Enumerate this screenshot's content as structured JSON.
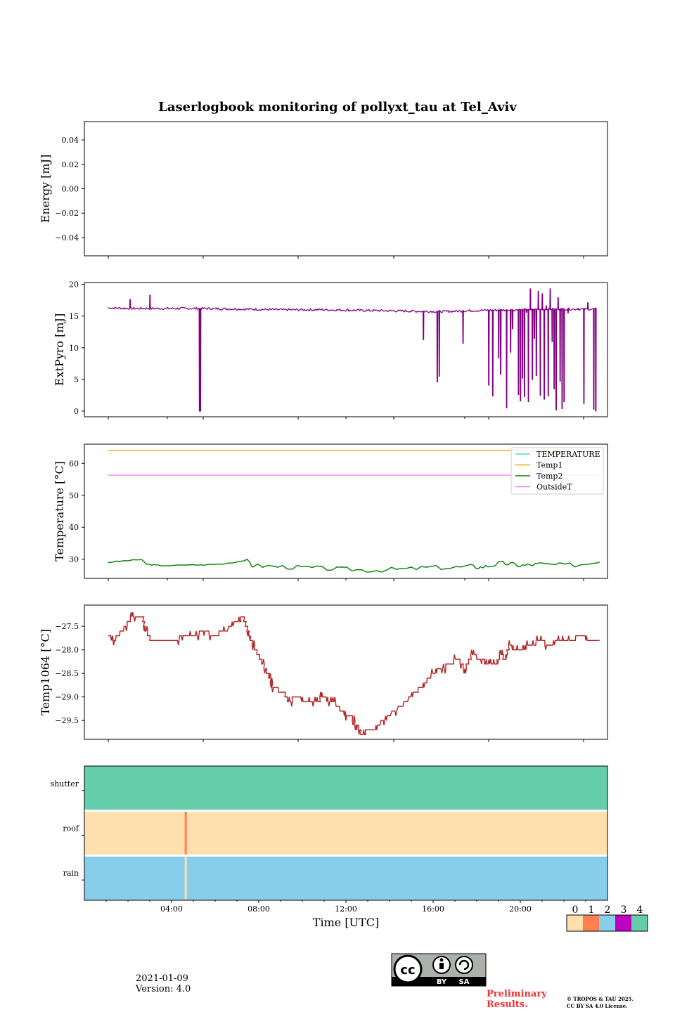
{
  "title": "Laserlogbook monitoring of pollyxt_tau at Tel_Aviv",
  "date_text": "2021-01-09",
  "version_text": "Version: 4.0",
  "preliminary_line1": "Preliminary",
  "preliminary_line2": "Results.",
  "copyright_line1": "© TROPOS & TAU 2025.",
  "copyright_line2": "CC BY SA 4.0 License.",
  "license_badge": {
    "by": "BY",
    "sa": "SA",
    "cc": "cc"
  },
  "colors": {
    "energy": "#800080",
    "extpyro": "#800080",
    "temp1064": "#b22222",
    "TEMPERATURE": "#40e0d0",
    "Temp1": "#ffa500",
    "Temp2": "#008000",
    "OutsideT": "#ee82ee",
    "status": [
      "#fde0ad",
      "#ff7f50",
      "#87ceeb",
      "#c000c0",
      "#66cdaa"
    ]
  },
  "chart_data": [
    {
      "type": "line",
      "ylabel": "Energy [mJ]",
      "yticks": [
        "0.04",
        "0.02",
        "0.00",
        "−0.02",
        "−0.04"
      ],
      "ytick_values": [
        0.04,
        0.02,
        0.0,
        -0.02,
        -0.04
      ],
      "ylim": [
        -0.055,
        0.055
      ],
      "xlim": [
        0,
        26.4
      ],
      "series": []
    },
    {
      "type": "line",
      "ylabel": "ExtPyro [mJ]",
      "yticks": [
        "20",
        "15",
        "10",
        "5",
        "0"
      ],
      "ytick_values": [
        20,
        15,
        10,
        5,
        0
      ],
      "ylim": [
        -0.9,
        20.3
      ],
      "xlim": [
        0,
        26.4
      ],
      "baseline": [
        [
          1.2,
          16.3
        ],
        [
          2.5,
          16.2
        ],
        [
          4.0,
          16.2
        ],
        [
          6.0,
          16.2
        ],
        [
          8.0,
          16.1
        ],
        [
          10.0,
          16.0
        ],
        [
          12.0,
          16.0
        ],
        [
          14.0,
          15.9
        ],
        [
          16.0,
          15.8
        ],
        [
          18.0,
          15.7
        ],
        [
          20.0,
          15.9
        ],
        [
          22.0,
          16.0
        ],
        [
          24.0,
          16.1
        ]
      ],
      "spikes": [
        [
          2.3,
          17.6
        ],
        [
          3.3,
          18.3
        ],
        [
          5.8,
          0.0
        ],
        [
          5.85,
          0.0
        ],
        [
          17.1,
          11.3
        ],
        [
          17.8,
          4.6
        ],
        [
          17.9,
          5.5
        ],
        [
          19.1,
          10.7
        ],
        [
          20.4,
          4.1
        ],
        [
          20.6,
          2.4
        ],
        [
          20.9,
          8.4
        ],
        [
          21.0,
          5.8
        ],
        [
          21.3,
          0.5
        ],
        [
          21.5,
          9.3
        ],
        [
          21.6,
          13.0
        ],
        [
          21.9,
          2.6
        ],
        [
          22.0,
          1.6
        ],
        [
          22.1,
          5.2
        ],
        [
          22.2,
          2.3
        ],
        [
          22.3,
          15.6
        ],
        [
          22.4,
          1.5
        ],
        [
          22.5,
          19.3
        ],
        [
          22.6,
          5.0
        ],
        [
          22.7,
          11.5
        ],
        [
          22.8,
          5.6
        ],
        [
          22.9,
          18.9
        ],
        [
          23.0,
          2.5
        ],
        [
          23.1,
          18.5
        ],
        [
          23.2,
          1.9
        ],
        [
          23.3,
          16.6
        ],
        [
          23.4,
          2.4
        ],
        [
          23.5,
          19.3
        ],
        [
          23.6,
          11.0
        ],
        [
          23.7,
          3.5
        ],
        [
          23.8,
          0.2
        ],
        [
          23.9,
          17.9
        ],
        [
          24.0,
          4.7
        ],
        [
          24.1,
          0.4
        ],
        [
          24.2,
          1.5
        ],
        [
          24.4,
          15.5
        ],
        [
          24.9,
          16.2
        ],
        [
          25.2,
          1.2
        ],
        [
          25.4,
          17.1
        ],
        [
          25.7,
          0.3
        ],
        [
          25.8,
          0.0
        ]
      ]
    },
    {
      "type": "line",
      "ylabel": "Temperature [°C]",
      "yticks": [
        "60",
        "50",
        "40",
        "30"
      ],
      "ytick_values": [
        60,
        50,
        40,
        30
      ],
      "ylim": [
        24,
        66
      ],
      "xlim": [
        0,
        26.4
      ],
      "series": [
        {
          "name": "TEMPERATURE",
          "x": [],
          "y": []
        },
        {
          "name": "Temp1",
          "x": [
            1.2,
            24.0
          ],
          "y": [
            64.0,
            64.0
          ]
        },
        {
          "name": "Temp2",
          "x": [
            1.2,
            2.0,
            2.9,
            3.1,
            3.5,
            4.0,
            5.5,
            6.0,
            7.0,
            8.0,
            8.2,
            8.5,
            9.5,
            10.5,
            11.5,
            12.5,
            13.5,
            14.5,
            15.5,
            16.5,
            17.5,
            18.5,
            19.5,
            20.0,
            20.5,
            21.0,
            21.5,
            22.0,
            22.5,
            23.0,
            24.0,
            25.0,
            25.5,
            26.0
          ],
          "y": [
            29.0,
            29.5,
            29.9,
            28.5,
            28.2,
            28.0,
            28.2,
            28.2,
            28.5,
            29.5,
            29.9,
            28.0,
            27.8,
            27.5,
            27.3,
            27.0,
            26.8,
            26.5,
            26.8,
            27.0,
            27.5,
            27.3,
            27.8,
            27.5,
            28.0,
            28.8,
            28.5,
            28.0,
            28.2,
            28.5,
            28.2,
            28.2,
            28.6,
            29.1
          ]
        },
        {
          "name": "OutsideT",
          "x": [
            1.2,
            26.0
          ],
          "y": [
            56.3,
            56.3
          ]
        }
      ],
      "legend": [
        "TEMPERATURE",
        "Temp1",
        "Temp2",
        "OutsideT"
      ],
      "legend_position": "top-right"
    },
    {
      "type": "line",
      "ylabel": "Temp1064 [°C]",
      "yticks": [
        "−27.5",
        "−28.0",
        "−28.5",
        "−29.0",
        "−29.5"
      ],
      "ytick_values": [
        -27.5,
        -28.0,
        -28.5,
        -29.0,
        -29.5
      ],
      "ylim": [
        -29.9,
        -27.05
      ],
      "xlim": [
        0,
        26.4
      ],
      "x": [
        1.2,
        1.5,
        2.0,
        2.4,
        2.9,
        3.0,
        3.3,
        4.0,
        4.5,
        5.0,
        5.5,
        6.0,
        6.5,
        7.0,
        7.7,
        8.0,
        8.2,
        8.4,
        8.7,
        9.0,
        9.3,
        9.5,
        10.0,
        10.3,
        10.6,
        11.2,
        11.7,
        12.0,
        12.5,
        13.0,
        13.2,
        13.4,
        13.7,
        14.0,
        14.3,
        14.6,
        15.2,
        16.0,
        16.6,
        17.0,
        17.5,
        18.0,
        18.4,
        18.8,
        19.2,
        19.5,
        20.0,
        20.3,
        20.7,
        21.0,
        21.2,
        21.4,
        21.8,
        22.0,
        22.5,
        23.0,
        23.4,
        24.0,
        24.5,
        25.0,
        25.5,
        26.0
      ],
      "y": [
        -27.7,
        -27.8,
        -27.5,
        -27.3,
        -27.3,
        -27.5,
        -27.8,
        -27.8,
        -27.8,
        -27.7,
        -27.7,
        -27.6,
        -27.7,
        -27.6,
        -27.4,
        -27.3,
        -27.6,
        -27.8,
        -28.1,
        -28.3,
        -28.6,
        -28.8,
        -28.9,
        -29.1,
        -29.0,
        -29.1,
        -29.1,
        -29.0,
        -29.1,
        -29.3,
        -29.4,
        -29.4,
        -29.6,
        -29.8,
        -29.7,
        -29.7,
        -29.4,
        -29.2,
        -28.9,
        -28.8,
        -28.5,
        -28.4,
        -28.3,
        -28.2,
        -28.4,
        -28.1,
        -28.2,
        -28.3,
        -28.3,
        -28.1,
        -28.2,
        -27.9,
        -28.0,
        -28.0,
        -27.9,
        -27.8,
        -27.9,
        -27.8,
        -27.8,
        -27.7,
        -27.8,
        -27.8
      ]
    },
    {
      "type": "heatmap",
      "rows": [
        "shutter",
        "roof",
        "rain"
      ],
      "xlabel": "Time [UTC]",
      "xticks": [
        "04:00",
        "08:00",
        "12:00",
        "16:00",
        "20:00"
      ],
      "xtick_values": [
        4,
        8,
        12,
        16,
        20
      ],
      "xlim": [
        0,
        24
      ],
      "row_values": [
        4,
        0,
        2
      ],
      "events": [
        {
          "row": "roof",
          "t": 4.65,
          "value": 1
        },
        {
          "row": "rain",
          "t": 4.65,
          "value": 0
        }
      ],
      "colorbar_ticks": [
        "0",
        "1",
        "2",
        "3",
        "4"
      ]
    }
  ]
}
